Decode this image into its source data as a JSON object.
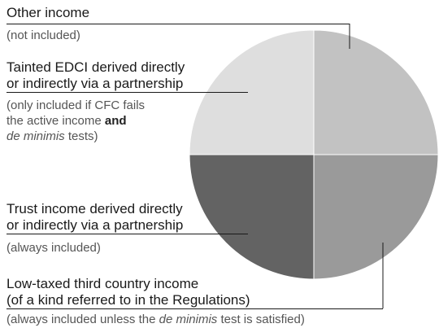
{
  "colors": {
    "other_income": "#c2c2c2",
    "tainted_edci": "#dedede",
    "trust_income": "#636363",
    "low_taxed": "#9a9a9a",
    "divider": "#ffffff",
    "leader": "#1a1a1a",
    "note_text": "#555555"
  },
  "chart_data": {
    "type": "pie",
    "slices": [
      {
        "key": "other_income",
        "value": 25
      },
      {
        "key": "low_taxed",
        "value": 25
      },
      {
        "key": "trust_income",
        "value": 25
      },
      {
        "key": "tainted_edci",
        "value": 25
      }
    ]
  },
  "labels": {
    "other_income": {
      "title": "Other income",
      "note": "(not included)"
    },
    "tainted_edci": {
      "title_line1": "Tainted EDCI derived directly",
      "title_line2": "or indirectly via a partnership",
      "note_line1": "(only included if CFC fails",
      "note_line2_pre": "the active income ",
      "note_line2_bold": "and",
      "note_line3_italic": "de minimis",
      "note_line3_post": " tests)"
    },
    "trust_income": {
      "title_line1": "Trust income derived directly",
      "title_line2": "or indirectly via a partnership",
      "note": "(always included)"
    },
    "low_taxed": {
      "title_line1": "Low-taxed third country income",
      "title_line2": "(of a kind referred to in the Regulations)",
      "note_pre": "(always included unless the ",
      "note_italic": "de minimis",
      "note_post": " test is satisfied)"
    }
  }
}
